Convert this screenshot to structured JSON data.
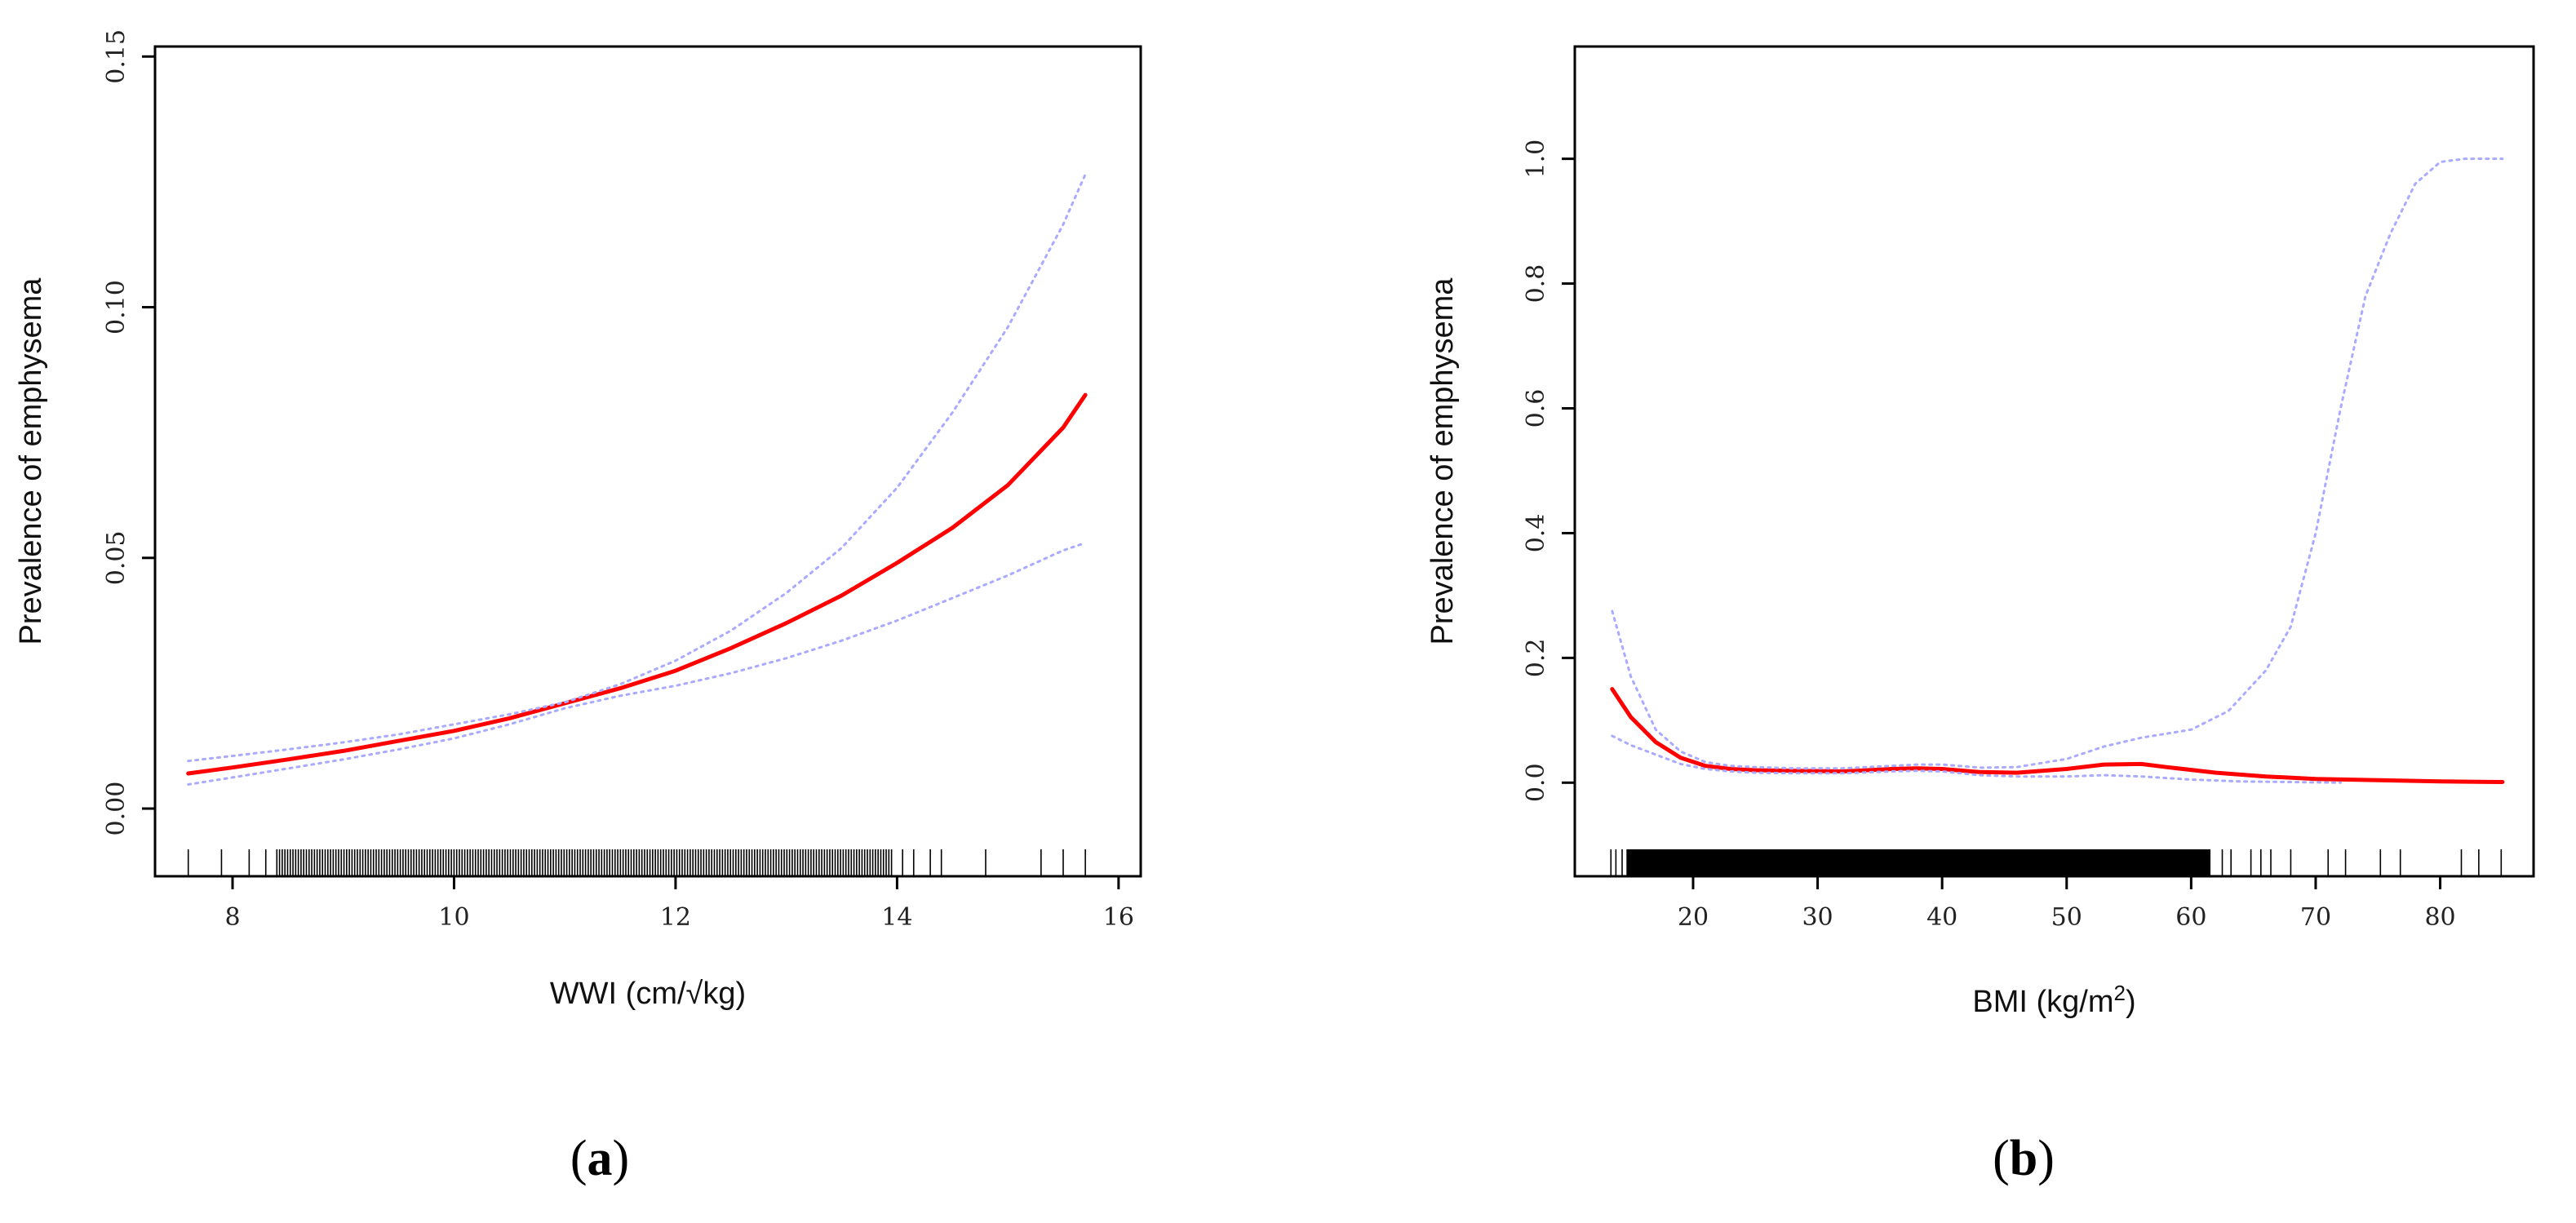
{
  "chart_data": [
    {
      "type": "line",
      "panel_label": "a",
      "xlabel": "WWI (cm/√kg)",
      "ylabel": "Prevalence of emphysema",
      "xlim": [
        7.3,
        16.2
      ],
      "ylim": [
        -0.0135,
        0.152
      ],
      "x_ticks": [
        8,
        10,
        12,
        14,
        16
      ],
      "x_tick_labels": [
        "8",
        "10",
        "12",
        "14",
        "16"
      ],
      "y_ticks": [
        0.0,
        0.05,
        0.1,
        0.15
      ],
      "y_tick_labels": [
        "0.00",
        "0.05",
        "0.10",
        "0.15"
      ],
      "grid": false,
      "series": [
        {
          "role": "estimate",
          "color": "#ff0000",
          "style": "solid",
          "x": [
            7.6,
            8.0,
            8.5,
            9.0,
            9.5,
            10.0,
            10.5,
            11.0,
            11.5,
            12.0,
            12.5,
            13.0,
            13.5,
            14.0,
            14.5,
            15.0,
            15.5,
            15.7
          ],
          "y": [
            0.007,
            0.0082,
            0.0098,
            0.0115,
            0.0135,
            0.0155,
            0.018,
            0.021,
            0.024,
            0.0275,
            0.032,
            0.037,
            0.0425,
            0.049,
            0.056,
            0.0645,
            0.076,
            0.0825
          ]
        },
        {
          "role": "upper-ci",
          "color": "#aaaaff",
          "style": "dotted",
          "x": [
            7.6,
            8.0,
            8.5,
            9.0,
            9.5,
            10.0,
            10.5,
            11.0,
            11.5,
            12.0,
            12.5,
            13.0,
            13.5,
            14.0,
            14.5,
            15.0,
            15.5,
            15.7
          ],
          "y": [
            0.0095,
            0.0105,
            0.0118,
            0.0132,
            0.0148,
            0.0168,
            0.0188,
            0.0212,
            0.0248,
            0.0295,
            0.0355,
            0.043,
            0.052,
            0.064,
            0.079,
            0.096,
            0.1165,
            0.1265
          ]
        },
        {
          "role": "lower-ci",
          "color": "#aaaaff",
          "style": "dotted",
          "x": [
            7.6,
            8.0,
            8.5,
            9.0,
            9.5,
            10.0,
            10.5,
            11.0,
            11.5,
            12.0,
            12.5,
            13.0,
            13.5,
            14.0,
            14.5,
            15.0,
            15.5,
            15.7
          ],
          "y": [
            0.0048,
            0.0062,
            0.008,
            0.0098,
            0.0118,
            0.014,
            0.0168,
            0.02,
            0.0225,
            0.0245,
            0.027,
            0.03,
            0.0335,
            0.0375,
            0.042,
            0.0465,
            0.0515,
            0.053
          ]
        }
      ],
      "rug": {
        "sparse": [
          7.6,
          7.9,
          8.15,
          8.3,
          14.05,
          14.15,
          14.3,
          14.4,
          14.8,
          15.3,
          15.5,
          15.7
        ],
        "dense_range": [
          8.4,
          13.95
        ],
        "dense_count": 230
      }
    },
    {
      "type": "line",
      "panel_label": "b",
      "xlabel": "BMI (kg/m",
      "xlabel_sup": "2",
      "xlabel_end": ")",
      "ylabel": "Prevalence of emphysema",
      "xlim": [
        10.5,
        87.5
      ],
      "ylim": [
        -0.15,
        1.18
      ],
      "x_ticks": [
        20,
        30,
        40,
        50,
        60,
        70,
        80
      ],
      "x_tick_labels": [
        "20",
        "30",
        "40",
        "50",
        "60",
        "70",
        "80"
      ],
      "y_ticks": [
        0.0,
        0.2,
        0.4,
        0.6,
        0.8,
        1.0
      ],
      "y_tick_labels": [
        "0.0",
        "0.2",
        "0.4",
        "0.6",
        "0.8",
        "1.0"
      ],
      "grid": false,
      "series": [
        {
          "role": "estimate",
          "color": "#ff0000",
          "style": "solid",
          "x": [
            13.5,
            15,
            17,
            19,
            21,
            23,
            25,
            28,
            32,
            36,
            38,
            40,
            43,
            46,
            50,
            53,
            56,
            58,
            62,
            66,
            70,
            75,
            80,
            85
          ],
          "y": [
            0.15,
            0.105,
            0.065,
            0.04,
            0.027,
            0.022,
            0.02,
            0.019,
            0.018,
            0.022,
            0.023,
            0.022,
            0.017,
            0.016,
            0.022,
            0.029,
            0.03,
            0.025,
            0.016,
            0.01,
            0.006,
            0.004,
            0.002,
            0.001
          ]
        },
        {
          "role": "upper-ci",
          "color": "#aaaaff",
          "style": "dotted",
          "x": [
            13.5,
            15,
            17,
            19,
            21,
            23,
            25,
            28,
            32,
            36,
            38,
            40,
            43,
            46,
            50,
            53,
            56,
            60,
            63,
            66,
            68,
            70,
            72,
            74,
            76,
            78,
            80,
            82,
            85
          ],
          "y": [
            0.275,
            0.17,
            0.085,
            0.05,
            0.033,
            0.027,
            0.025,
            0.023,
            0.023,
            0.027,
            0.029,
            0.029,
            0.024,
            0.025,
            0.038,
            0.058,
            0.072,
            0.085,
            0.115,
            0.18,
            0.25,
            0.4,
            0.6,
            0.78,
            0.88,
            0.96,
            0.995,
            1.0,
            1.0
          ]
        },
        {
          "role": "lower-ci",
          "color": "#aaaaff",
          "style": "dotted",
          "x": [
            13.5,
            15,
            17,
            19,
            21,
            23,
            25,
            28,
            32,
            36,
            38,
            40,
            43,
            46,
            50,
            53,
            56,
            60,
            64,
            68,
            72
          ],
          "y": [
            0.075,
            0.06,
            0.045,
            0.03,
            0.022,
            0.018,
            0.016,
            0.015,
            0.015,
            0.018,
            0.019,
            0.018,
            0.012,
            0.01,
            0.01,
            0.012,
            0.01,
            0.005,
            0.002,
            0.001,
            0.0
          ]
        }
      ],
      "rug": {
        "sparse": [
          13.4,
          13.8,
          14.3,
          62.5,
          63.2,
          64.8,
          65.6,
          66.4,
          68.0,
          71.0,
          72.4,
          75.2,
          76.8,
          81.7,
          83.1,
          84.9
        ],
        "dense_range": [
          14.7,
          61.5
        ],
        "dense_count": 600
      }
    }
  ]
}
